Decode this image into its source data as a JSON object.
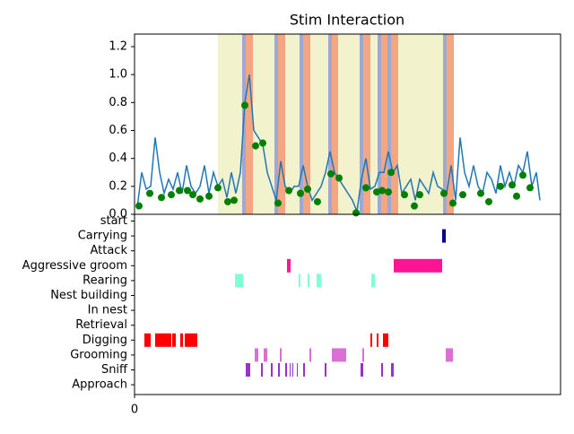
{
  "chart_data": [
    {
      "type": "line",
      "title": "Stim Interaction",
      "color": "#1f77b4",
      "xlim": [
        0,
        475
      ],
      "ylim": [
        0,
        1.29
      ],
      "yticks": [
        {
          "value": 0,
          "label": "0.0"
        },
        0.2,
        0.4,
        0.6,
        0.8,
        {
          "value": 1,
          "label": "1.0"
        },
        1.2
      ],
      "spans": [
        {
          "start": 93,
          "end": 356,
          "color": "#f2f2cc"
        },
        {
          "start": 120,
          "end": 124,
          "color": "#9fa8d0"
        },
        {
          "start": 124,
          "end": 132,
          "color": "#f4a582"
        },
        {
          "start": 156,
          "end": 160,
          "color": "#9fa8d0"
        },
        {
          "start": 160,
          "end": 168,
          "color": "#f4a582"
        },
        {
          "start": 184,
          "end": 188,
          "color": "#9fa8d0"
        },
        {
          "start": 188,
          "end": 196,
          "color": "#f4a582"
        },
        {
          "start": 216,
          "end": 220,
          "color": "#9fa8d0"
        },
        {
          "start": 220,
          "end": 227,
          "color": "#f4a582"
        },
        {
          "start": 251,
          "end": 255,
          "color": "#9fa8d0"
        },
        {
          "start": 255,
          "end": 263,
          "color": "#f4a582"
        },
        {
          "start": 271,
          "end": 275,
          "color": "#9fa8d0"
        },
        {
          "start": 275,
          "end": 282,
          "color": "#f4a582"
        },
        {
          "start": 282,
          "end": 286,
          "color": "#9fa8d0"
        },
        {
          "start": 286,
          "end": 294,
          "color": "#f4a582"
        },
        {
          "start": 344,
          "end": 348,
          "color": "#9fa8d0"
        },
        {
          "start": 348,
          "end": 356,
          "color": "#f4a582"
        }
      ],
      "x": [
        3,
        8,
        13,
        18,
        23,
        28,
        33,
        38,
        43,
        48,
        53,
        58,
        63,
        68,
        73,
        78,
        83,
        88,
        93,
        98,
        103,
        108,
        113,
        118,
        123,
        128,
        133,
        138,
        143,
        148,
        153,
        158,
        163,
        168,
        173,
        178,
        183,
        188,
        193,
        198,
        203,
        208,
        213,
        218,
        223,
        228,
        233,
        238,
        243,
        248,
        253,
        258,
        263,
        268,
        273,
        278,
        283,
        288,
        293,
        298,
        303,
        308,
        313,
        318,
        323,
        328,
        333,
        338,
        343,
        348,
        353,
        358,
        363,
        368,
        373,
        378,
        383,
        388,
        393,
        398,
        403,
        408,
        413,
        418,
        423,
        428,
        433,
        438,
        443,
        448,
        452
      ],
      "values": [
        0.05,
        0.3,
        0.18,
        0.2,
        0.55,
        0.3,
        0.15,
        0.25,
        0.18,
        0.3,
        0.15,
        0.35,
        0.2,
        0.15,
        0.2,
        0.35,
        0.15,
        0.3,
        0.2,
        0.25,
        0.12,
        0.3,
        0.15,
        0.3,
        0.8,
        1.0,
        0.6,
        0.55,
        0.5,
        0.3,
        0.2,
        0.1,
        0.38,
        0.2,
        0.15,
        0.2,
        0.2,
        0.35,
        0.2,
        0.1,
        0.15,
        0.2,
        0.3,
        0.45,
        0.3,
        0.25,
        0.2,
        0.15,
        0.1,
        0.02,
        0.25,
        0.4,
        0.18,
        0.2,
        0.3,
        0.3,
        0.45,
        0.3,
        0.35,
        0.15,
        0.2,
        0.25,
        0.1,
        0.25,
        0.2,
        0.15,
        0.3,
        0.2,
        0.18,
        0.15,
        0.35,
        0.1,
        0.55,
        0.3,
        0.2,
        0.35,
        0.2,
        0.15,
        0.3,
        0.25,
        0.15,
        0.35,
        0.2,
        0.3,
        0.2,
        0.35,
        0.3,
        0.45,
        0.2,
        0.3,
        0.1
      ],
      "points": {
        "color": "#008000",
        "x": [
          5,
          17,
          30,
          41,
          50,
          59,
          65,
          73,
          83,
          93,
          104,
          111,
          123,
          135,
          143,
          160,
          172,
          185,
          193,
          204,
          219,
          228,
          247,
          258,
          270,
          276,
          283,
          286,
          301,
          312,
          318,
          345,
          355,
          366,
          386,
          395,
          408,
          421,
          426,
          433,
          441
        ],
        "values": [
          0.06,
          0.15,
          0.12,
          0.14,
          0.17,
          0.17,
          0.14,
          0.11,
          0.13,
          0.19,
          0.09,
          0.1,
          0.78,
          0.49,
          0.51,
          0.08,
          0.17,
          0.15,
          0.18,
          0.09,
          0.29,
          0.26,
          0.01,
          0.19,
          0.16,
          0.17,
          0.16,
          0.3,
          0.14,
          0.06,
          0.14,
          0.15,
          0.08,
          0.14,
          0.15,
          0.09,
          0.2,
          0.21,
          0.13,
          0.28,
          0.19
        ]
      }
    },
    {
      "type": "ethogram",
      "xlim": [
        0,
        475
      ],
      "xticks": [
        0
      ],
      "categories": [
        "start",
        "Carrying",
        "Attack",
        "Aggressive groom",
        "Rearing",
        "Nest building",
        "In nest",
        "Retrieval",
        "Digging",
        "Grooming",
        "Sniff",
        "Approach"
      ],
      "events": [
        {
          "color": "#000000",
          "intervals": []
        },
        {
          "color": "#00008b",
          "intervals": [
            [
              343,
              347
            ]
          ]
        },
        {
          "color": "#000000",
          "intervals": []
        },
        {
          "color": "#ff1493",
          "intervals": [
            [
              170,
              174
            ],
            [
              289,
              343
            ]
          ]
        },
        {
          "color": "#7fffd4",
          "intervals": [
            [
              112,
              121
            ],
            [
              183,
              185
            ],
            [
              193,
              195
            ],
            [
              203,
              208
            ],
            [
              264,
              268
            ]
          ]
        },
        {
          "color": "#000000",
          "intervals": []
        },
        {
          "color": "#000000",
          "intervals": []
        },
        {
          "color": "#000000",
          "intervals": []
        },
        {
          "color": "#ff0000",
          "intervals": [
            [
              11,
              18
            ],
            [
              23,
              41
            ],
            [
              42,
              46
            ],
            [
              51,
              54
            ],
            [
              56,
              70
            ],
            [
              263,
              265
            ],
            [
              270,
              272
            ],
            [
              277,
              283
            ]
          ]
        },
        {
          "color": "#da70d6",
          "intervals": [
            [
              134,
              138
            ],
            [
              144,
              148
            ],
            [
              162,
              164
            ],
            [
              195,
              197
            ],
            [
              220,
              236
            ],
            [
              254,
              256
            ],
            [
              347,
              353
            ],
            [
              353,
              355
            ]
          ]
        },
        {
          "color": "#9932cc",
          "intervals": [
            [
              124,
              129
            ],
            [
              141,
              143
            ],
            [
              152,
              154
            ],
            [
              160,
              162
            ],
            [
              168,
              170
            ],
            [
              173,
              174
            ],
            [
              176,
              177
            ],
            [
              181,
              182
            ],
            [
              188,
              190
            ],
            [
              212,
              214
            ],
            [
              252,
              255
            ],
            [
              275,
              277
            ],
            [
              286,
              289
            ]
          ]
        },
        {
          "color": "#000000",
          "intervals": []
        }
      ]
    }
  ]
}
